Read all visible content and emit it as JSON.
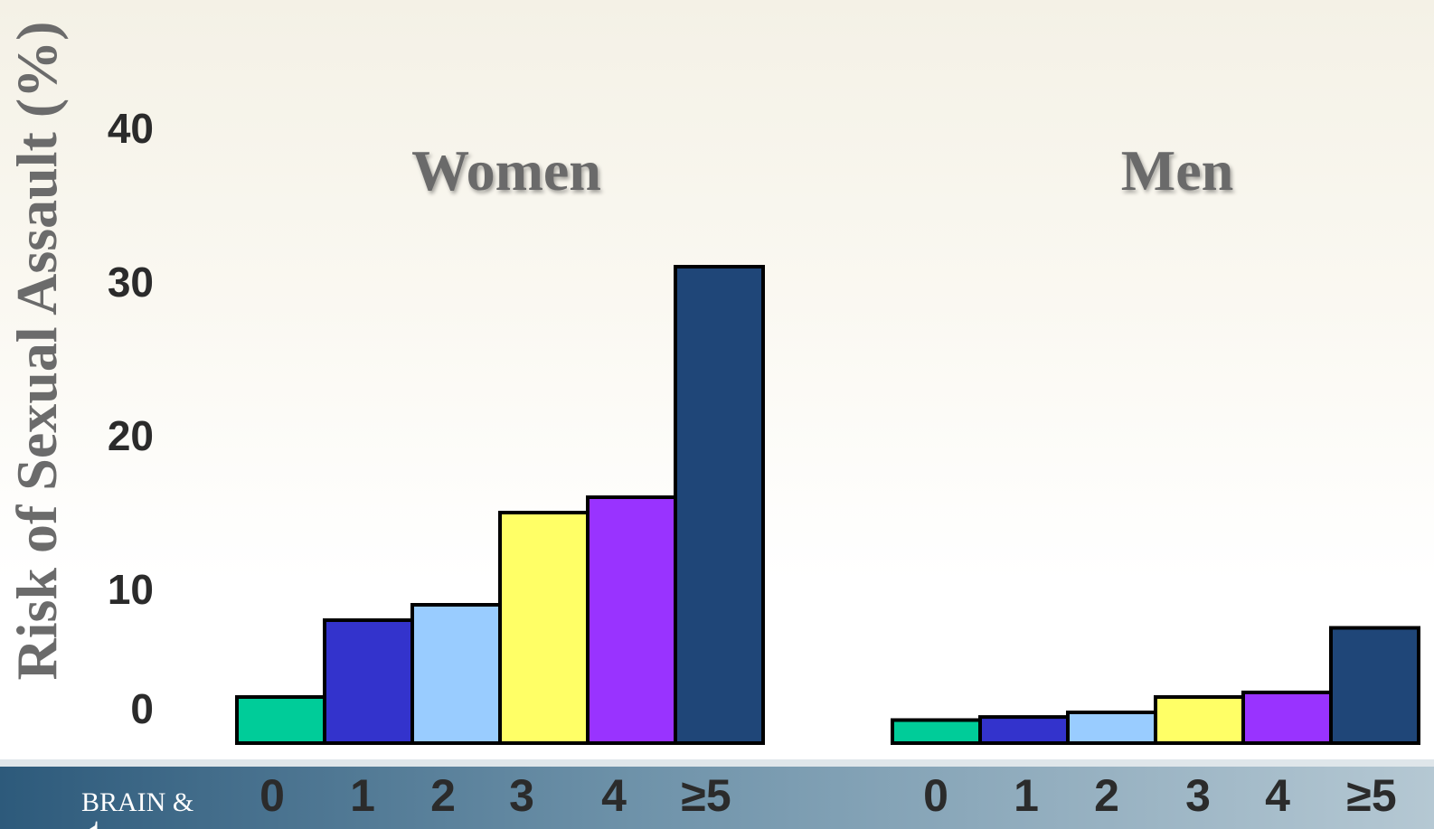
{
  "chart_data": [
    {
      "type": "bar",
      "title": "Women",
      "ylabel": "Risk of Sexual Assault (%)",
      "categories": [
        "0",
        "1",
        "2",
        "3",
        "4",
        "≥5"
      ],
      "values": [
        3,
        8,
        9,
        15,
        16,
        31
      ],
      "ylim": [
        0,
        40
      ],
      "yticks": [
        "0",
        "10",
        "20",
        "30",
        "40"
      ],
      "colors": [
        "#00cc99",
        "#3333cc",
        "#99ccff",
        "#ffff66",
        "#9933ff",
        "#1f4678"
      ]
    },
    {
      "type": "bar",
      "title": "Men",
      "ylabel": "Risk of Sexual Assault (%)",
      "categories": [
        "0",
        "1",
        "2",
        "3",
        "4",
        "≥5"
      ],
      "values": [
        1.5,
        1.7,
        2,
        3,
        3.3,
        7.5
      ],
      "ylim": [
        0,
        40
      ],
      "yticks": [
        "0",
        "10",
        "20",
        "30",
        "40"
      ],
      "colors": [
        "#00cc99",
        "#3333cc",
        "#99ccff",
        "#ffff66",
        "#9933ff",
        "#1f4678"
      ]
    }
  ],
  "footer": {
    "brand_letter": "Y",
    "brand_text": "BRAIN &",
    "band_colors": [
      "#2f5f80",
      "#a9bfcc"
    ]
  }
}
